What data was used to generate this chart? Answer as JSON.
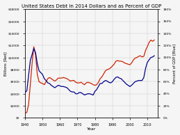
{
  "title": "United States Debt in 2014 Dollars and as Percent of GDP",
  "xlabel": "Year",
  "ylabel_left": "Billions [Red]",
  "ylabel_right": "Percent of GDP [Blue]",
  "background_color": "#f5f5f5",
  "grid_color": "#cccccc",
  "blue_color": "#00008B",
  "red_color": "#CC2200",
  "years": [
    1940,
    1941,
    1942,
    1943,
    1944,
    1945,
    1946,
    1947,
    1948,
    1949,
    1950,
    1951,
    1952,
    1953,
    1954,
    1955,
    1956,
    1957,
    1958,
    1959,
    1960,
    1961,
    1962,
    1963,
    1964,
    1965,
    1966,
    1967,
    1968,
    1969,
    1970,
    1971,
    1972,
    1973,
    1974,
    1975,
    1976,
    1977,
    1978,
    1979,
    1980,
    1981,
    1982,
    1983,
    1984,
    1985,
    1986,
    1987,
    1988,
    1989,
    1990,
    1991,
    1992,
    1993,
    1994,
    1995,
    1996,
    1997,
    1998,
    1999,
    2000,
    2001,
    2002,
    2003,
    2004,
    2005,
    2006,
    2007,
    2008,
    2009,
    2010,
    2011,
    2012,
    2013,
    2014
  ],
  "debt_billions": [
    800,
    900,
    2200,
    5500,
    9000,
    11800,
    10500,
    7200,
    6000,
    5800,
    5700,
    5500,
    6000,
    6500,
    6700,
    6500,
    6300,
    6100,
    6300,
    6600,
    6600,
    6600,
    6700,
    6600,
    6500,
    6300,
    6100,
    6200,
    6200,
    5900,
    5800,
    5800,
    5900,
    5700,
    5500,
    5800,
    5900,
    5800,
    5700,
    5500,
    5400,
    5500,
    5900,
    6500,
    6800,
    7300,
    7800,
    8000,
    8100,
    8300,
    8600,
    8900,
    9400,
    9500,
    9400,
    9400,
    9300,
    9100,
    9000,
    8900,
    8800,
    9100,
    9600,
    9900,
    10000,
    10200,
    10300,
    10100,
    10200,
    11200,
    11800,
    12500,
    12900,
    12700,
    12900
  ],
  "debt_pct_gdp": [
    42,
    45,
    70,
    95,
    105,
    115,
    108,
    90,
    78,
    75,
    72,
    65,
    62,
    58,
    57,
    54,
    52,
    50,
    52,
    54,
    53,
    52,
    52,
    51,
    50,
    47,
    44,
    43,
    43,
    40,
    40,
    42,
    42,
    40,
    38,
    39,
    40,
    40,
    39,
    38,
    44,
    47,
    52,
    57,
    57,
    60,
    62,
    61,
    59,
    58,
    60,
    64,
    67,
    68,
    66,
    65,
    62,
    59,
    56,
    54,
    52,
    54,
    57,
    60,
    61,
    62,
    62,
    62,
    67,
    82,
    92,
    96,
    100,
    101,
    103
  ],
  "ylim_left": [
    0,
    18000
  ],
  "ylim_right": [
    0,
    180
  ],
  "yticks_left": [
    0,
    2000,
    4000,
    6000,
    8000,
    10000,
    12000,
    14000,
    16000,
    18000
  ],
  "yticks_right": [
    0,
    20,
    40,
    60,
    80,
    100,
    120,
    140,
    160,
    180
  ],
  "ytick_labels_left": [
    "$0",
    "$2000",
    "$4000",
    "$6000",
    "$8000",
    "$10000",
    "$12000",
    "$14000",
    "$16000",
    "$18000"
  ],
  "ytick_labels_right": [
    "0%",
    "20%",
    "40%",
    "60%",
    "80%",
    "100%",
    "120%",
    "140%",
    "160%",
    "180%"
  ],
  "xticks": [
    1940,
    1950,
    1960,
    1970,
    1980,
    1990,
    2000,
    2010
  ],
  "xlim": [
    1940,
    2016
  ]
}
